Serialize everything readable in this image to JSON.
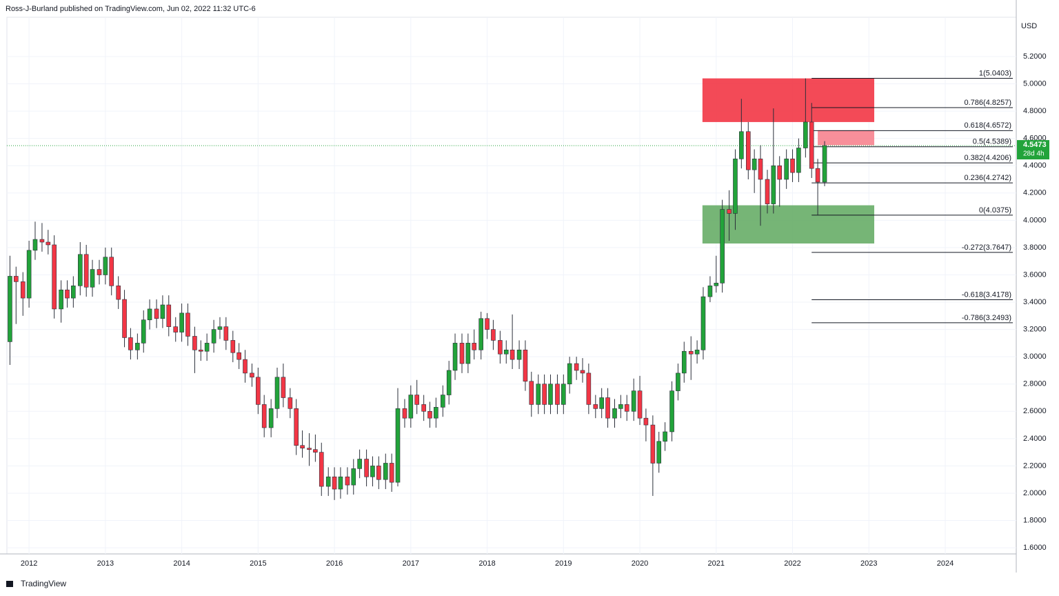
{
  "header": "Ross-J-Burland published on TradingView.com, Jun 02, 2022 11:32 UTC-6",
  "footer": "TradingView",
  "chart_data": {
    "type": "candlestick",
    "y_unit": "USD",
    "x": [
      2011.75,
      2011.83,
      2011.92,
      2012,
      2012.08,
      2012.17,
      2012.25,
      2012.33,
      2012.42,
      2012.5,
      2012.58,
      2012.67,
      2012.75,
      2012.83,
      2012.92,
      2013,
      2013.08,
      2013.17,
      2013.25,
      2013.33,
      2013.42,
      2013.5,
      2013.58,
      2013.67,
      2013.75,
      2013.83,
      2013.92,
      2014,
      2014.08,
      2014.17,
      2014.25,
      2014.33,
      2014.42,
      2014.5,
      2014.58,
      2014.67,
      2014.75,
      2014.83,
      2014.92,
      2015,
      2015.08,
      2015.17,
      2015.25,
      2015.33,
      2015.42,
      2015.5,
      2015.58,
      2015.67,
      2015.75,
      2015.83,
      2015.92,
      2016,
      2016.08,
      2016.17,
      2016.25,
      2016.33,
      2016.42,
      2016.5,
      2016.58,
      2016.67,
      2016.75,
      2016.83,
      2016.92,
      2017,
      2017.08,
      2017.17,
      2017.25,
      2017.33,
      2017.42,
      2017.5,
      2017.58,
      2017.67,
      2017.75,
      2017.83,
      2017.92,
      2018,
      2018.08,
      2018.17,
      2018.25,
      2018.33,
      2018.42,
      2018.5,
      2018.58,
      2018.67,
      2018.75,
      2018.83,
      2018.92,
      2019,
      2019.08,
      2019.17,
      2019.25,
      2019.33,
      2019.42,
      2019.5,
      2019.58,
      2019.67,
      2019.75,
      2019.83,
      2019.92,
      2020,
      2020.08,
      2020.17,
      2020.25,
      2020.33,
      2020.42,
      2020.5,
      2020.58,
      2020.67,
      2020.75,
      2020.83,
      2020.92,
      2021,
      2021.08,
      2021.17,
      2021.25,
      2021.33,
      2021.42,
      2021.5,
      2021.58,
      2021.67,
      2021.75,
      2021.83,
      2021.92,
      2022,
      2022.08,
      2022.17,
      2022.25,
      2022.33,
      2022.42
    ],
    "open": [
      3.11,
      3.59,
      3.55,
      3.43,
      3.78,
      3.86,
      3.84,
      3.82,
      3.35,
      3.49,
      3.43,
      3.52,
      3.75,
      3.51,
      3.64,
      3.6,
      3.73,
      3.52,
      3.42,
      3.14,
      3.05,
      3.1,
      3.27,
      3.35,
      3.28,
      3.38,
      3.22,
      3.18,
      3.32,
      3.15,
      3.05,
      3.04,
      3.1,
      3.2,
      3.22,
      3.12,
      3.03,
      2.98,
      2.88,
      2.85,
      2.65,
      2.48,
      2.62,
      2.85,
      2.7,
      2.62,
      2.35,
      2.33,
      2.32,
      2.3,
      2.05,
      2.12,
      2.03,
      2.12,
      2.06,
      2.18,
      2.25,
      2.12,
      2.2,
      2.1,
      2.22,
      2.08,
      2.62,
      2.55,
      2.72,
      2.65,
      2.6,
      2.55,
      2.63,
      2.72,
      2.9,
      3.1,
      2.95,
      3.1,
      3.05,
      3.28,
      3.2,
      3.12,
      3.02,
      3.05,
      2.98,
      3.05,
      2.82,
      2.65,
      2.8,
      2.65,
      2.8,
      2.65,
      2.8,
      2.95,
      2.9,
      2.88,
      2.65,
      2.62,
      2.7,
      2.55,
      2.62,
      2.65,
      2.6,
      2.75,
      2.55,
      2.5,
      2.22,
      2.38,
      2.45,
      2.75,
      2.88,
      3.04,
      3.02,
      3.05,
      3.44,
      3.52,
      3.54,
      4.08,
      4.05,
      4.45,
      4.65,
      4.37,
      4.45,
      4.3,
      4.12,
      4.4,
      4.3,
      4.45,
      4.35,
      4.53,
      4.72,
      4.38,
      4.28
    ],
    "high": [
      3.74,
      3.66,
      3.62,
      3.85,
      3.99,
      3.98,
      3.93,
      3.89,
      3.56,
      3.56,
      3.59,
      3.84,
      3.82,
      3.71,
      3.71,
      3.8,
      3.8,
      3.59,
      3.49,
      3.21,
      3.17,
      3.34,
      3.42,
      3.42,
      3.45,
      3.45,
      3.29,
      3.39,
      3.39,
      3.22,
      3.12,
      3.17,
      3.27,
      3.29,
      3.29,
      3.19,
      3.1,
      3.05,
      2.95,
      2.92,
      2.72,
      2.69,
      2.92,
      2.95,
      2.77,
      2.69,
      2.46,
      2.44,
      2.43,
      2.37,
      2.19,
      2.19,
      2.19,
      2.19,
      2.25,
      2.32,
      2.32,
      2.27,
      2.27,
      2.29,
      2.29,
      2.77,
      2.69,
      2.79,
      2.83,
      2.72,
      2.67,
      2.7,
      2.79,
      2.97,
      3.17,
      3.17,
      3.17,
      3.2,
      3.33,
      3.32,
      3.27,
      3.19,
      3.12,
      3.31,
      3.12,
      3.12,
      2.89,
      2.87,
      2.87,
      2.87,
      2.87,
      2.87,
      3.0,
      3.0,
      2.99,
      2.95,
      2.72,
      2.77,
      2.77,
      2.69,
      2.72,
      2.72,
      2.84,
      2.86,
      2.62,
      2.57,
      2.45,
      2.52,
      2.82,
      2.95,
      3.11,
      3.15,
      3.12,
      3.51,
      3.59,
      3.74,
      4.15,
      4.22,
      4.52,
      4.89,
      4.72,
      4.52,
      4.55,
      4.37,
      4.82,
      4.47,
      4.52,
      4.52,
      4.6,
      5.04,
      4.86,
      4.45,
      4.58
    ],
    "low": [
      2.94,
      3.24,
      3.3,
      3.36,
      3.71,
      3.77,
      3.75,
      3.28,
      3.25,
      3.36,
      3.36,
      3.45,
      3.44,
      3.44,
      3.53,
      3.53,
      3.45,
      3.35,
      3.07,
      2.98,
      2.98,
      3.03,
      3.2,
      3.21,
      3.21,
      3.15,
      3.11,
      3.11,
      3.08,
      2.88,
      2.97,
      2.97,
      3.03,
      3.13,
      3.05,
      2.96,
      2.91,
      2.81,
      2.78,
      2.58,
      2.41,
      2.41,
      2.55,
      2.63,
      2.55,
      2.28,
      2.26,
      2.2,
      2.23,
      1.98,
      1.98,
      1.95,
      1.96,
      1.99,
      1.99,
      2.11,
      2.05,
      2.05,
      2.03,
      2.03,
      2.01,
      2.05,
      2.48,
      2.48,
      2.58,
      2.53,
      2.48,
      2.48,
      2.56,
      2.65,
      2.83,
      2.88,
      2.88,
      2.98,
      2.98,
      3.13,
      3.05,
      2.95,
      2.95,
      2.91,
      2.91,
      2.75,
      2.56,
      2.58,
      2.58,
      2.58,
      2.58,
      2.58,
      2.73,
      2.83,
      2.81,
      2.58,
      2.55,
      2.55,
      2.48,
      2.48,
      2.55,
      2.53,
      2.53,
      2.5,
      2.38,
      1.98,
      2.15,
      2.31,
      2.38,
      2.68,
      2.81,
      2.83,
      2.95,
      2.98,
      3.4,
      3.47,
      3.47,
      3.85,
      3.93,
      4.38,
      4.3,
      4.2,
      3.96,
      4.05,
      4.05,
      4.1,
      4.23,
      4.28,
      4.28,
      4.46,
      4.31,
      4.04,
      4.25
    ],
    "close": [
      3.59,
      3.55,
      3.43,
      3.78,
      3.86,
      3.84,
      3.82,
      3.35,
      3.49,
      3.43,
      3.52,
      3.75,
      3.51,
      3.64,
      3.6,
      3.73,
      3.52,
      3.42,
      3.14,
      3.05,
      3.1,
      3.27,
      3.35,
      3.28,
      3.38,
      3.22,
      3.18,
      3.32,
      3.15,
      3.05,
      3.04,
      3.1,
      3.2,
      3.22,
      3.12,
      3.03,
      2.98,
      2.88,
      2.85,
      2.65,
      2.48,
      2.62,
      2.85,
      2.7,
      2.62,
      2.35,
      2.33,
      2.32,
      2.3,
      2.05,
      2.12,
      2.03,
      2.12,
      2.06,
      2.18,
      2.25,
      2.12,
      2.2,
      2.1,
      2.22,
      2.08,
      2.62,
      2.55,
      2.72,
      2.65,
      2.6,
      2.55,
      2.63,
      2.72,
      2.9,
      3.1,
      2.95,
      3.1,
      3.05,
      3.28,
      3.2,
      3.12,
      3.02,
      3.05,
      2.98,
      3.05,
      2.82,
      2.65,
      2.8,
      2.65,
      2.8,
      2.65,
      2.8,
      2.95,
      2.9,
      2.88,
      2.65,
      2.62,
      2.7,
      2.55,
      2.62,
      2.65,
      2.6,
      2.75,
      2.55,
      2.5,
      2.22,
      2.38,
      2.45,
      2.75,
      2.88,
      3.04,
      3.02,
      3.05,
      3.44,
      3.52,
      3.54,
      4.08,
      4.05,
      4.45,
      4.65,
      4.37,
      4.45,
      4.3,
      4.12,
      4.4,
      4.3,
      4.45,
      4.35,
      4.53,
      4.72,
      4.38,
      4.28,
      4.5473
    ],
    "up_color": "#22a33a",
    "down_color": "#f23645",
    "xlim": [
      2011.71,
      2024.93
    ],
    "xticks": [
      2012,
      2013,
      2014,
      2015,
      2016,
      2017,
      2018,
      2019,
      2020,
      2021,
      2022,
      2023,
      2024
    ],
    "ylim": [
      1.555,
      5.488
    ],
    "yticks": [
      {
        "value": 1.6,
        "label": "1.6000"
      },
      {
        "value": 1.8,
        "label": "1.8000"
      },
      {
        "value": 2.0,
        "label": "2.0000"
      },
      {
        "value": 2.2,
        "label": "2.2000"
      },
      {
        "value": 2.4,
        "label": "2.4000"
      },
      {
        "value": 2.6,
        "label": "2.6000"
      },
      {
        "value": 2.8,
        "label": "2.8000"
      },
      {
        "value": 3.0,
        "label": "3.0000"
      },
      {
        "value": 3.2,
        "label": "3.2000"
      },
      {
        "value": 3.4,
        "label": "3.4000"
      },
      {
        "value": 3.6,
        "label": "3.6000"
      },
      {
        "value": 3.8,
        "label": "3.8000"
      },
      {
        "value": 4.0,
        "label": "4.0000"
      },
      {
        "value": 4.2,
        "label": "4.2000"
      },
      {
        "value": 4.4,
        "label": "4.4000"
      },
      {
        "value": 4.6,
        "label": "4.6000"
      },
      {
        "value": 4.8,
        "label": "4.8000"
      },
      {
        "value": 5.0,
        "label": "5.0000"
      },
      {
        "value": 5.2,
        "label": "5.2000"
      }
    ],
    "grid": true,
    "fib_from": 2022.25,
    "fib_levels": [
      {
        "value": 5.0403,
        "label": "1(5.0403)"
      },
      {
        "value": 4.8257,
        "label": "0.786(4.8257)"
      },
      {
        "value": 4.6572,
        "label": "0.618(4.6572)"
      },
      {
        "value": 4.5389,
        "label": "0.5(4.5389)"
      },
      {
        "value": 4.4206,
        "label": "0.382(4.4206)"
      },
      {
        "value": 4.2742,
        "label": "0.236(4.2742)"
      },
      {
        "value": 4.0375,
        "label": "0(4.0375)"
      },
      {
        "value": 3.7647,
        "label": "-0.272(3.7647)"
      },
      {
        "value": 3.4178,
        "label": "-0.618(3.4178)"
      },
      {
        "value": 3.2493,
        "label": "-0.786(3.2493)"
      }
    ],
    "zones": [
      {
        "from": 2020.82,
        "to": 2023.07,
        "low": 4.72,
        "high": 5.04,
        "color": "#f23645"
      },
      {
        "from": 2022.33,
        "to": 2023.07,
        "low": 4.55,
        "high": 4.66,
        "color": "#f7838f"
      },
      {
        "from": 2020.82,
        "to": 2023.07,
        "low": 3.83,
        "high": 4.11,
        "color": "#67ad67"
      }
    ],
    "last_price": 4.5473,
    "countdown": "28d 4h"
  }
}
